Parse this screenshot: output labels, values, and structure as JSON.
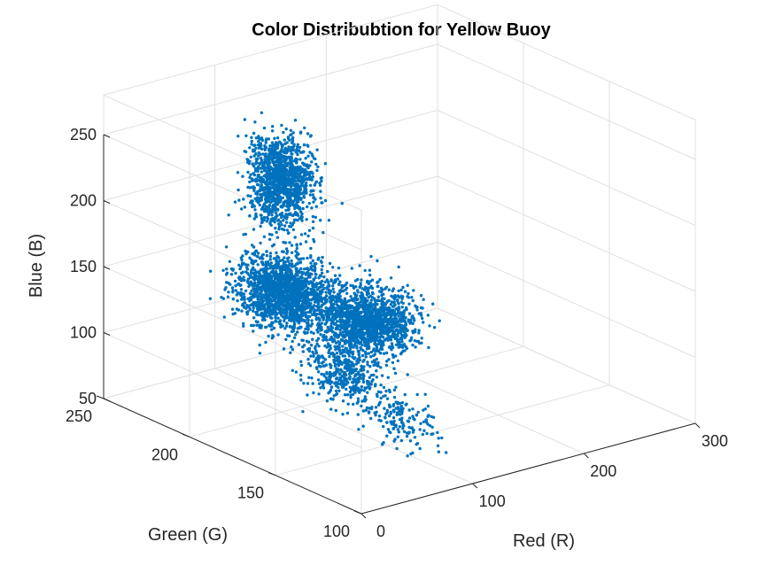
{
  "chart_data": {
    "type": "scatter",
    "title": "Color Distribubtion for Yellow Buoy",
    "xlabel": "Red (R)",
    "ylabel": "Green (G)",
    "zlabel": "Blue (B)",
    "xlim": [
      0,
      300
    ],
    "ylim": [
      100,
      250
    ],
    "zlim": [
      50,
      250
    ],
    "xticks": [
      "0",
      "100",
      "200",
      "300"
    ],
    "yticks": [
      "100",
      "150",
      "200",
      "250"
    ],
    "zticks": [
      "50",
      "100",
      "150",
      "200",
      "250"
    ],
    "grid": true,
    "color": "#0072bd",
    "clusters": [
      {
        "r": 90,
        "g": 205,
        "b": 220,
        "sr": 9,
        "sg": 7,
        "sb": 16,
        "n": 1300
      },
      {
        "r": 70,
        "g": 190,
        "b": 150,
        "sr": 14,
        "sg": 9,
        "sb": 13,
        "n": 1700
      },
      {
        "r": 120,
        "g": 175,
        "b": 125,
        "sr": 16,
        "sg": 10,
        "sb": 11,
        "n": 1500
      },
      {
        "r": 95,
        "g": 170,
        "b": 95,
        "sr": 10,
        "sg": 9,
        "sb": 11,
        "n": 450
      },
      {
        "r": 115,
        "g": 150,
        "b": 65,
        "sr": 8,
        "sg": 9,
        "sb": 9,
        "n": 160
      }
    ]
  }
}
